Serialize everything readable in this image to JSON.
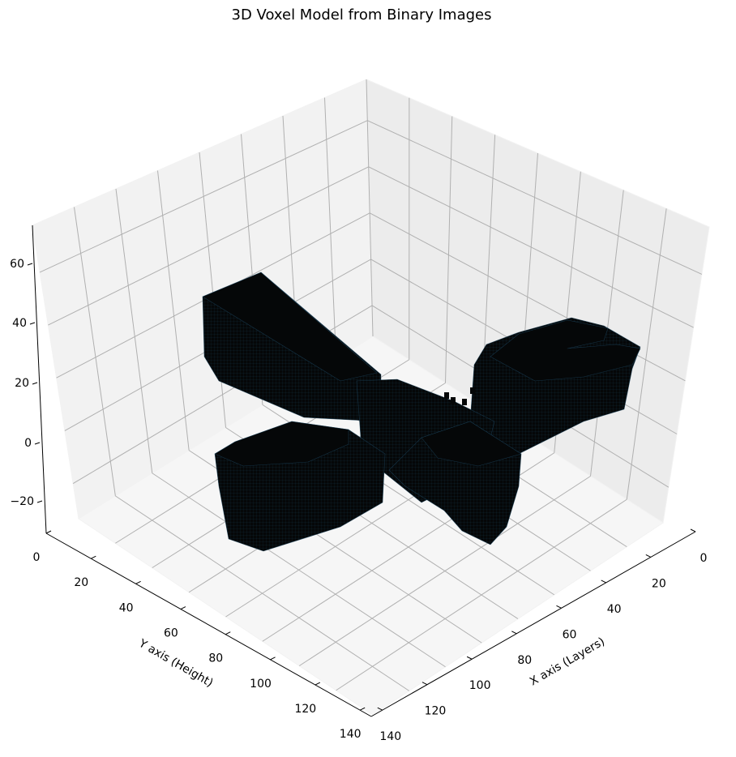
{
  "chart_data": {
    "type": "voxel3d",
    "title": "3D Voxel Model from Binary Images",
    "xlabel": "X axis (Layers)",
    "ylabel": "Y axis (Height)",
    "zlabel": "",
    "x_ticks": [
      "0",
      "20",
      "40",
      "60",
      "80",
      "100",
      "120",
      "140"
    ],
    "y_ticks": [
      "0",
      "20",
      "40",
      "60",
      "80",
      "100",
      "120",
      "140"
    ],
    "z_ticks": [
      "−20",
      "0",
      "20",
      "40",
      "60"
    ],
    "grid": true,
    "colors": {
      "voxel_face": "#050708",
      "voxel_edge": "#1d4660",
      "pane": "#f2f2f2",
      "grid": "#b0b0b0"
    }
  }
}
